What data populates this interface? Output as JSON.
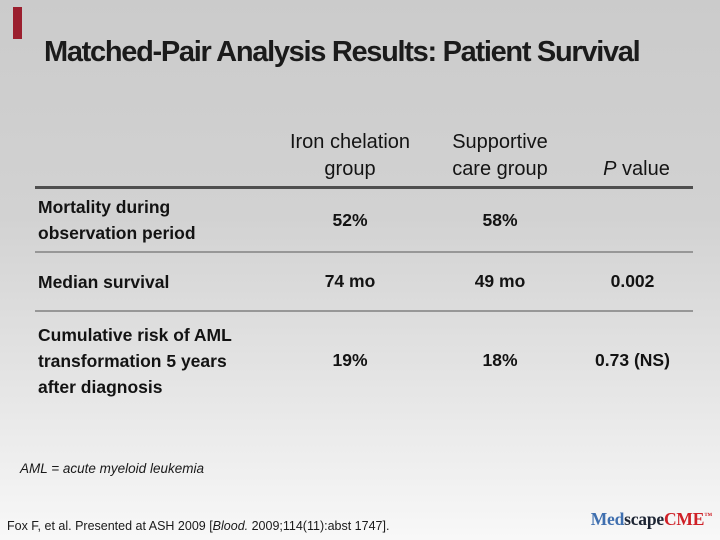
{
  "slide": {
    "title": "Matched-Pair Analysis Results: Patient Survival",
    "footnote": "AML = acute myeloid leukemia",
    "citation": {
      "prefix": "Fox F, et al. Presented at ASH 2009 [",
      "journal_italic": "Blood.",
      "suffix": " 2009;114(11):abst 1747]."
    },
    "accent_bar_color": "#9b1f2e"
  },
  "table": {
    "headers": {
      "iron_line1": "Iron chelation",
      "iron_line2": "group",
      "supportive_line1": "Supportive",
      "supportive_line2": "care group",
      "p_italic": "P",
      "p_rest": " value"
    },
    "rows": [
      {
        "label": "Mortality during observation period",
        "iron": "52%",
        "supportive": "58%",
        "p": ""
      },
      {
        "label": "Median survival",
        "iron": "74 mo",
        "supportive": "49 mo",
        "p": "0.002"
      },
      {
        "label": "Cumulative risk of AML transformation 5 years after diagnosis",
        "iron": "19%",
        "supportive": "18%",
        "p": "0.73 (NS)"
      }
    ]
  },
  "logo": {
    "part1": "Med",
    "part2": "scape",
    "part3": "CME",
    "tm": "™",
    "part1_color": "#3f6faf",
    "part2_color": "#1c2433",
    "part3_color": "#cf2027"
  },
  "chart_data": {
    "type": "table",
    "title": "Matched-Pair Analysis Results: Patient Survival",
    "columns": [
      "",
      "Iron chelation group",
      "Supportive care group",
      "P value"
    ],
    "rows": [
      [
        "Mortality during observation period",
        "52%",
        "58%",
        ""
      ],
      [
        "Median survival",
        "74 mo",
        "49 mo",
        "0.002"
      ],
      [
        "Cumulative risk of AML transformation 5 years after diagnosis",
        "19%",
        "18%",
        "0.73 (NS)"
      ]
    ]
  }
}
